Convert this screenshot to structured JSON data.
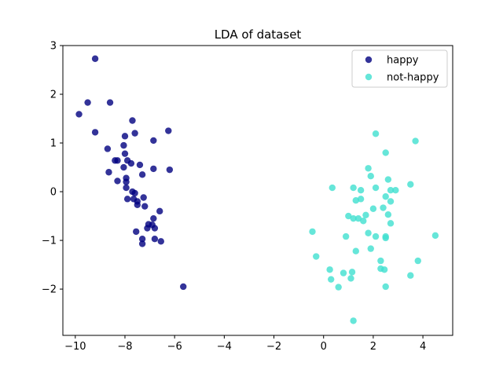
{
  "chart_data": {
    "type": "scatter",
    "title": "LDA of dataset",
    "xlabel": "",
    "ylabel": "",
    "xlim": [
      -10.5,
      5.2
    ],
    "ylim": [
      -2.95,
      3.0
    ],
    "xticks": [
      -10,
      -8,
      -6,
      -4,
      -2,
      0,
      2,
      4
    ],
    "yticks": [
      -2,
      -1,
      0,
      1,
      2,
      3
    ],
    "grid": false,
    "legend_position": "top-right",
    "series": [
      {
        "name": "happy",
        "color": "#000080",
        "points": [
          [
            -9.2,
            2.73
          ],
          [
            -9.5,
            1.83
          ],
          [
            -8.6,
            1.83
          ],
          [
            -9.85,
            1.59
          ],
          [
            -9.2,
            1.22
          ],
          [
            -7.7,
            1.46
          ],
          [
            -7.6,
            1.2
          ],
          [
            -8.0,
            1.14
          ],
          [
            -6.25,
            1.25
          ],
          [
            -6.85,
            1.05
          ],
          [
            -8.7,
            0.88
          ],
          [
            -8.05,
            0.95
          ],
          [
            -8.0,
            0.78
          ],
          [
            -8.4,
            0.64
          ],
          [
            -8.3,
            0.64
          ],
          [
            -7.9,
            0.64
          ],
          [
            -7.75,
            0.58
          ],
          [
            -7.4,
            0.55
          ],
          [
            -8.05,
            0.5
          ],
          [
            -6.85,
            0.47
          ],
          [
            -6.2,
            0.45
          ],
          [
            -8.65,
            0.4
          ],
          [
            -7.3,
            0.35
          ],
          [
            -7.95,
            0.28
          ],
          [
            -8.3,
            0.22
          ],
          [
            -7.95,
            0.2
          ],
          [
            -7.95,
            0.08
          ],
          [
            -7.7,
            0.0
          ],
          [
            -7.6,
            -0.03
          ],
          [
            -7.25,
            -0.12
          ],
          [
            -7.9,
            -0.15
          ],
          [
            -7.65,
            -0.15
          ],
          [
            -7.5,
            -0.2
          ],
          [
            -7.5,
            -0.27
          ],
          [
            -7.2,
            -0.3
          ],
          [
            -6.6,
            -0.4
          ],
          [
            -7.05,
            -0.67
          ],
          [
            -6.9,
            -0.68
          ],
          [
            -7.1,
            -0.75
          ],
          [
            -6.8,
            -0.75
          ],
          [
            -6.85,
            -0.55
          ],
          [
            -7.55,
            -0.82
          ],
          [
            -6.8,
            -0.97
          ],
          [
            -6.55,
            -1.02
          ],
          [
            -7.3,
            -0.97
          ],
          [
            -7.3,
            -1.07
          ],
          [
            -5.65,
            -1.95
          ]
        ]
      },
      {
        "name": "not-happy",
        "color": "#40e0d0",
        "points": [
          [
            2.1,
            1.19
          ],
          [
            3.7,
            1.04
          ],
          [
            2.5,
            0.8
          ],
          [
            1.8,
            0.48
          ],
          [
            1.9,
            0.32
          ],
          [
            2.6,
            0.25
          ],
          [
            0.35,
            0.08
          ],
          [
            1.2,
            0.08
          ],
          [
            1.5,
            0.03
          ],
          [
            2.1,
            0.08
          ],
          [
            2.7,
            0.03
          ],
          [
            2.9,
            0.03
          ],
          [
            3.5,
            0.15
          ],
          [
            2.5,
            -0.1
          ],
          [
            1.5,
            -0.15
          ],
          [
            1.3,
            -0.18
          ],
          [
            2.7,
            -0.2
          ],
          [
            2.0,
            -0.35
          ],
          [
            2.4,
            -0.33
          ],
          [
            2.6,
            -0.47
          ],
          [
            1.7,
            -0.48
          ],
          [
            1.0,
            -0.5
          ],
          [
            1.2,
            -0.55
          ],
          [
            1.4,
            -0.55
          ],
          [
            1.6,
            -0.6
          ],
          [
            2.7,
            -0.65
          ],
          [
            -0.45,
            -0.82
          ],
          [
            1.8,
            -0.85
          ],
          [
            0.9,
            -0.92
          ],
          [
            2.1,
            -0.92
          ],
          [
            2.5,
            -0.95
          ],
          [
            4.5,
            -0.9
          ],
          [
            2.5,
            -0.92
          ],
          [
            1.9,
            -1.17
          ],
          [
            1.3,
            -1.22
          ],
          [
            -0.3,
            -1.33
          ],
          [
            2.3,
            -1.42
          ],
          [
            3.8,
            -1.42
          ],
          [
            0.25,
            -1.6
          ],
          [
            2.3,
            -1.58
          ],
          [
            2.45,
            -1.6
          ],
          [
            0.8,
            -1.67
          ],
          [
            1.15,
            -1.65
          ],
          [
            1.1,
            -1.78
          ],
          [
            3.5,
            -1.72
          ],
          [
            0.3,
            -1.8
          ],
          [
            0.6,
            -1.96
          ],
          [
            2.5,
            -1.95
          ],
          [
            1.2,
            -2.65
          ]
        ]
      }
    ]
  }
}
